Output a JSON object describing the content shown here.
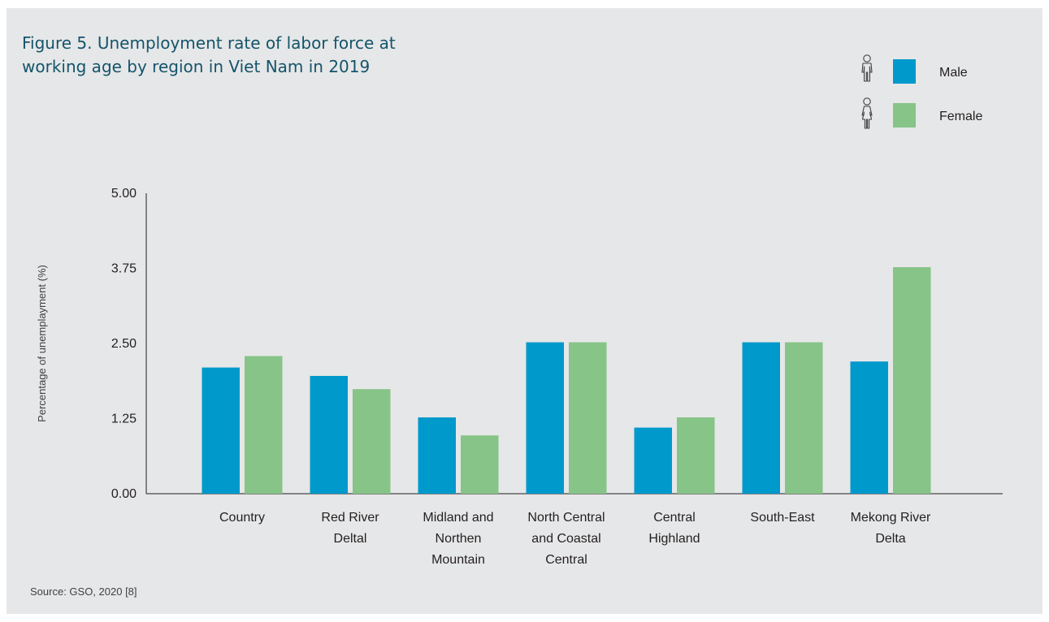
{
  "figure": {
    "title_lines": [
      "Figure 5. Unemployment rate of labor force at",
      "working age by region in Viet Nam in 2019"
    ],
    "source": "Source: GSO, 2020 [8]"
  },
  "legend": [
    {
      "label": "Male",
      "icon": "male-person-icon",
      "color": "#0099cc"
    },
    {
      "label": "Female",
      "icon": "female-person-icon",
      "color": "#86c487"
    }
  ],
  "chart_data": {
    "type": "bar",
    "title": "Figure 5. Unemployment rate of labor force at working age by region in Viet Nam in 2019",
    "ylabel": "Percentage of unemplayment (%)",
    "xlabel": "",
    "ylim": [
      0,
      5
    ],
    "yticks": [
      "0.00",
      "1.25",
      "2.50",
      "3.75",
      "5.00"
    ],
    "categories": [
      [
        "Country"
      ],
      [
        "Red River",
        "Deltal"
      ],
      [
        "Midland and",
        "Northen",
        "Mountain"
      ],
      [
        "North Central",
        "and Coastal",
        "Central"
      ],
      [
        "Central",
        "Highland"
      ],
      [
        "South-East"
      ],
      [
        "Mekong River",
        "Delta"
      ]
    ],
    "series": [
      {
        "name": "Male",
        "color": "#0099cc",
        "values": [
          2.1,
          1.96,
          1.27,
          2.52,
          1.1,
          2.52,
          2.2
        ]
      },
      {
        "name": "Female",
        "color": "#86c487",
        "values": [
          2.29,
          1.74,
          0.97,
          2.52,
          1.27,
          2.52,
          3.77
        ]
      }
    ],
    "legend_position": "top-right",
    "grid": false
  }
}
